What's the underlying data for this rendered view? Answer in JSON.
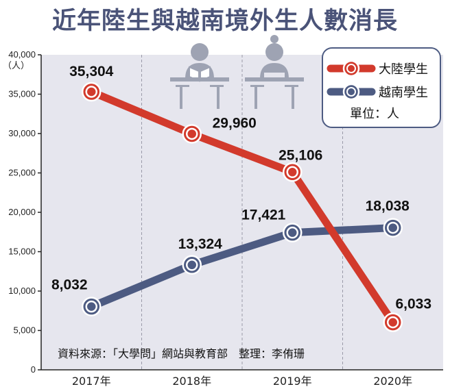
{
  "chart_data": {
    "type": "line",
    "title": "近年陸生與越南境外生人數消長",
    "y_unit_label": "（人）",
    "categories": [
      "2017年",
      "2018年",
      "2019年",
      "2020年"
    ],
    "series": [
      {
        "name": "大陸學生",
        "color": "#d23a2c",
        "values": [
          35304,
          29960,
          25106,
          6033
        ],
        "labels": [
          "35,304",
          "29,960",
          "25,106",
          "6,033"
        ]
      },
      {
        "name": "越南學生",
        "color": "#4d5b82",
        "values": [
          8032,
          13324,
          17421,
          18038
        ],
        "labels": [
          "8,032",
          "13,324",
          "17,421",
          "18,038"
        ]
      }
    ],
    "ylim": [
      0,
      40000
    ],
    "yticks": [
      0,
      5000,
      10000,
      15000,
      20000,
      25000,
      30000,
      35000,
      40000
    ],
    "ytick_labels": [
      "0",
      "5,000",
      "10,000",
      "15,000",
      "20,000",
      "25,000",
      "30,000",
      "35,000",
      "40,000"
    ],
    "legend_position": "top-right",
    "legend_unit": "單位：人",
    "source": "資料來源：「大學問」網站與教育部　整理：李侑珊",
    "plot_background": "#e6e6ee",
    "icons": [
      "student-reading-icon",
      "student-girl-icon"
    ]
  }
}
